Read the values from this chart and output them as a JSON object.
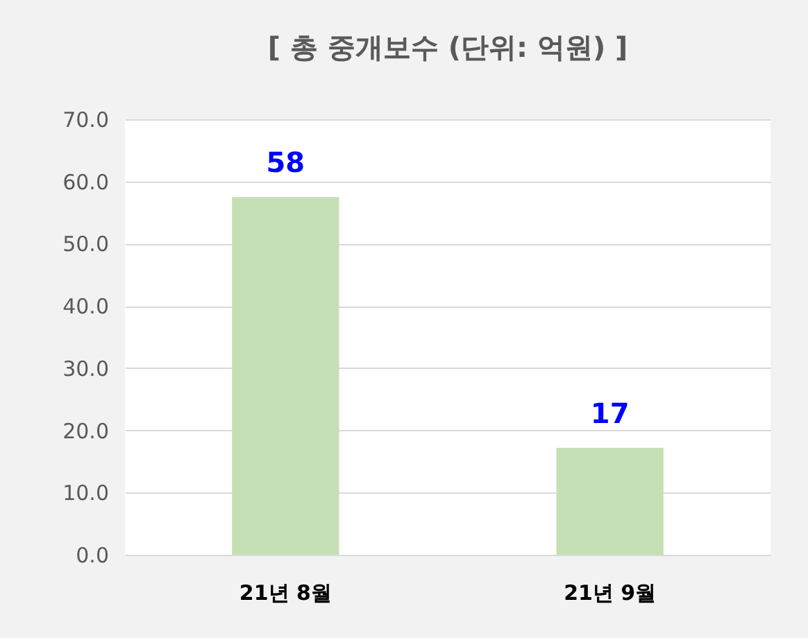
{
  "chart_data": {
    "type": "bar",
    "title": "[ 총 중개보수 (단위: 억원) ]",
    "categories": [
      "21년 8월",
      "21년 9월"
    ],
    "values": [
      57.5,
      17.2
    ],
    "value_labels": [
      "58",
      "17"
    ],
    "color": "#c5e0b4",
    "ylim": [
      0,
      70
    ],
    "yticks": [
      {
        "value": 0,
        "label": "0.0"
      },
      {
        "value": 10,
        "label": "10.0"
      },
      {
        "value": 20,
        "label": "20.0"
      },
      {
        "value": 30,
        "label": "30.0"
      },
      {
        "value": 40,
        "label": "40.0"
      },
      {
        "value": 50,
        "label": "50.0"
      },
      {
        "value": 60,
        "label": "60.0"
      },
      {
        "value": 70,
        "label": "70.0"
      }
    ],
    "grid": true
  }
}
